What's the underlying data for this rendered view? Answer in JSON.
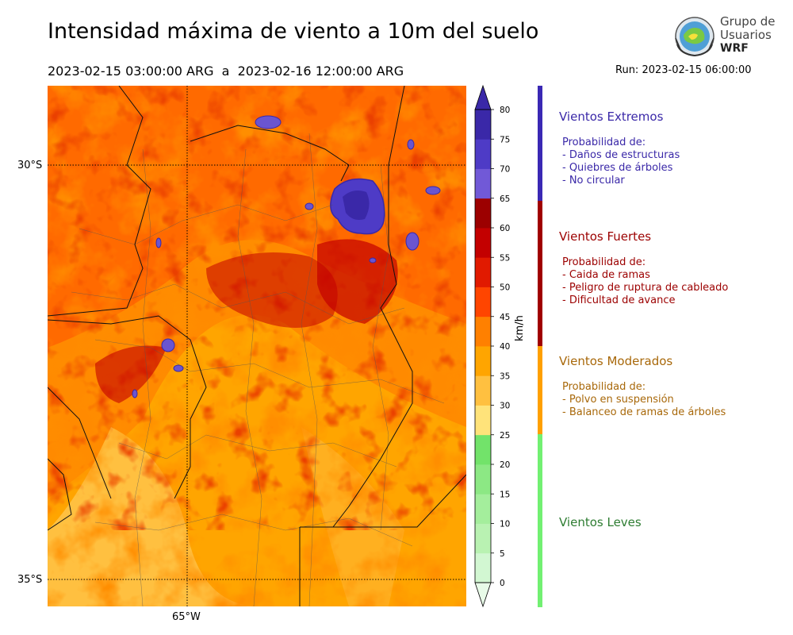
{
  "header": {
    "title": "Intensidad máxima de viento a 10m del suelo",
    "period": "2023-02-15 03:00:00 ARG  a  2023-02-16 12:00:00 ARG",
    "run": "Run: 2023-02-15 06:00:00"
  },
  "logo": {
    "line1": "Grupo de",
    "line2": "Usuarios",
    "line3": "WRF"
  },
  "map": {
    "lat_labels": [
      "30°S",
      "35°S"
    ],
    "lon_labels": [
      "65°W"
    ]
  },
  "colorbar": {
    "unit": "km/h",
    "ticks": [
      "0",
      "5",
      "10",
      "15",
      "20",
      "25",
      "30",
      "35",
      "40",
      "45",
      "50",
      "55",
      "60",
      "65",
      "70",
      "75",
      "80"
    ],
    "colors": [
      "#e8fbe8",
      "#d2f7d2",
      "#b9f2b2",
      "#a4ee9c",
      "#8ce884",
      "#72e36a",
      "#ffe37a",
      "#ffc040",
      "#ffa500",
      "#ff8000",
      "#ff4500",
      "#e11a00",
      "#c30000",
      "#9c0000",
      "#7159d7",
      "#4e3bc6",
      "#3a28a8"
    ]
  },
  "categories": [
    {
      "title": "Vientos Extremos",
      "color": "#3a28a8",
      "bar_color": "#3a28b4",
      "lines": [
        "Probabilidad de:",
        "- Daños de estructuras",
        "- Quiebres de árboles",
        "- No circular"
      ]
    },
    {
      "title": "Vientos Fuertes",
      "color": "#9c0000",
      "bar_color": "#a00000",
      "lines": [
        "Probabilidad de:",
        "- Caida de ramas",
        "- Peligro de ruptura de cableado",
        "- Dificultad de avance"
      ]
    },
    {
      "title": "Vientos Moderados",
      "color": "#a8680a",
      "bar_color": "#ffa000",
      "lines": [
        "Probabilidad de:",
        "- Polvo en suspensión",
        "- Balanceo de ramas de árboles"
      ]
    },
    {
      "title": "Vientos Leves",
      "color": "#2e7d32",
      "bar_color": "#72f072",
      "lines": []
    }
  ]
}
